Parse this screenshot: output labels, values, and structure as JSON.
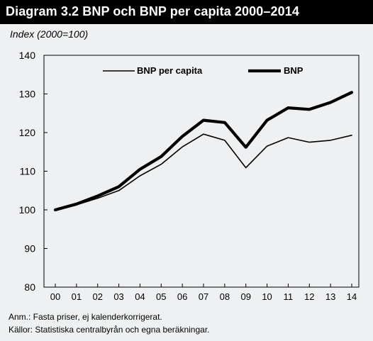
{
  "header": {
    "title": "Diagram 3.2 BNP och BNP per capita 2000–2014",
    "unit_label": "Index (2000=100)"
  },
  "footer": {
    "note": "Anm.: Fasta priser, ej kalenderkorrigerat.",
    "source": "Källor: Statistiska centralbyrån och egna beräkningar."
  },
  "chart_data": {
    "type": "line",
    "title": "Diagram 3.2 BNP och BNP per capita 2000–2014",
    "ylabel": "Index (2000=100)",
    "xlabel": "",
    "categories": [
      "00",
      "01",
      "02",
      "03",
      "04",
      "05",
      "06",
      "07",
      "08",
      "09",
      "10",
      "11",
      "12",
      "13",
      "14"
    ],
    "ylim": [
      80,
      140
    ],
    "yticks": [
      80,
      90,
      100,
      110,
      120,
      130,
      140
    ],
    "grid": false,
    "legend_position": "top",
    "series": [
      {
        "name": "BNP per capita",
        "values": [
          100,
          101.3,
          103.0,
          105.0,
          108.8,
          111.8,
          116.3,
          119.6,
          118.0,
          110.9,
          116.5,
          118.7,
          117.5,
          118.0,
          119.3
        ],
        "color": "#000000",
        "style": "thin"
      },
      {
        "name": "BNP",
        "values": [
          100,
          101.5,
          103.6,
          106.0,
          110.5,
          113.8,
          119.0,
          123.2,
          122.6,
          116.2,
          123.2,
          126.4,
          126.0,
          127.8,
          130.4
        ],
        "color": "#000000",
        "style": "thick"
      }
    ]
  }
}
